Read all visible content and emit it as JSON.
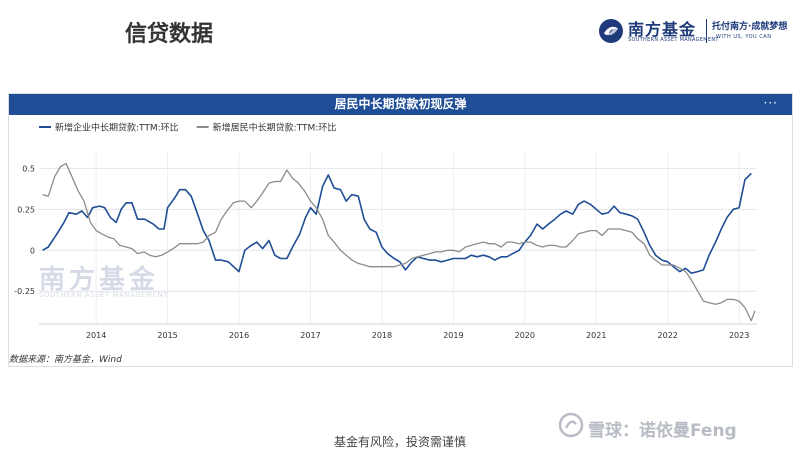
{
  "page": {
    "title": "信贷数据",
    "disclaimer": "基金有风险，投资需谨慎",
    "brand_name": "南方基金",
    "brand_en": "SOUTHERN ASSET MANAGEMENT",
    "brand_slogan": "托付南方·成就梦想",
    "brand_slogan_en": "WITH US, YOU CAN",
    "platform_watermark": "雪球：诺依曼Feng",
    "colors": {
      "header_blue": "#1f4e96",
      "brand_navy": "#1f3a7a",
      "series1": "#1f4e96",
      "series2": "#8c8c8c"
    }
  },
  "chart": {
    "more_icon": "more-horizontal-icon",
    "watermark_cn": "南方基金",
    "watermark_en": "SOUTHERN ASSET MANAGEMENT",
    "source": "数据来源：南方基金，Wind"
  },
  "chart_data": {
    "type": "line",
    "title": "居民中长期贷款初现反弹",
    "xlabel": "",
    "ylabel": "",
    "xlim": [
      2013.2,
      2023.25
    ],
    "ylim": [
      -0.45,
      0.6
    ],
    "yticks": [
      0.5,
      0.25,
      0,
      -0.25
    ],
    "ytick_labels": [
      "0.5",
      "0.25",
      "0",
      "-0.25"
    ],
    "xticks": [
      2014,
      2015,
      2016,
      2017,
      2018,
      2019,
      2020,
      2021,
      2022,
      2023
    ],
    "xtick_labels": [
      "2014",
      "2015",
      "2016",
      "2017",
      "2018",
      "2019",
      "2020",
      "2021",
      "2022",
      "2023"
    ],
    "grid": true,
    "legend_position": "top-left",
    "series": [
      {
        "name": "新增企业中长期贷款:TTM:环比",
        "color": "#1f4e96",
        "points": [
          [
            2013.25,
            0.0
          ],
          [
            2013.33,
            0.02
          ],
          [
            2013.45,
            0.1
          ],
          [
            2013.55,
            0.17
          ],
          [
            2013.62,
            0.23
          ],
          [
            2013.72,
            0.22
          ],
          [
            2013.8,
            0.24
          ],
          [
            2013.88,
            0.2
          ],
          [
            2013.95,
            0.26
          ],
          [
            2014.05,
            0.27
          ],
          [
            2014.12,
            0.26
          ],
          [
            2014.2,
            0.2
          ],
          [
            2014.28,
            0.17
          ],
          [
            2014.35,
            0.25
          ],
          [
            2014.42,
            0.29
          ],
          [
            2014.5,
            0.29
          ],
          [
            2014.58,
            0.19
          ],
          [
            2014.68,
            0.19
          ],
          [
            2014.8,
            0.16
          ],
          [
            2014.88,
            0.13
          ],
          [
            2014.95,
            0.13
          ],
          [
            2015.0,
            0.26
          ],
          [
            2015.1,
            0.32
          ],
          [
            2015.17,
            0.37
          ],
          [
            2015.25,
            0.37
          ],
          [
            2015.33,
            0.33
          ],
          [
            2015.42,
            0.22
          ],
          [
            2015.5,
            0.12
          ],
          [
            2015.58,
            0.06
          ],
          [
            2015.67,
            -0.06
          ],
          [
            2015.75,
            -0.06
          ],
          [
            2015.85,
            -0.07
          ],
          [
            2016.0,
            -0.13
          ],
          [
            2016.08,
            0.0
          ],
          [
            2016.17,
            0.03
          ],
          [
            2016.25,
            0.05
          ],
          [
            2016.33,
            0.01
          ],
          [
            2016.42,
            0.06
          ],
          [
            2016.5,
            -0.03
          ],
          [
            2016.58,
            -0.05
          ],
          [
            2016.67,
            -0.05
          ],
          [
            2016.75,
            0.02
          ],
          [
            2016.85,
            0.1
          ],
          [
            2016.93,
            0.2
          ],
          [
            2017.0,
            0.26
          ],
          [
            2017.08,
            0.22
          ],
          [
            2017.17,
            0.39
          ],
          [
            2017.25,
            0.46
          ],
          [
            2017.33,
            0.38
          ],
          [
            2017.42,
            0.37
          ],
          [
            2017.5,
            0.3
          ],
          [
            2017.58,
            0.34
          ],
          [
            2017.67,
            0.33
          ],
          [
            2017.75,
            0.19
          ],
          [
            2017.83,
            0.13
          ],
          [
            2017.92,
            0.11
          ],
          [
            2018.0,
            0.02
          ],
          [
            2018.08,
            -0.02
          ],
          [
            2018.17,
            -0.05
          ],
          [
            2018.25,
            -0.07
          ],
          [
            2018.33,
            -0.12
          ],
          [
            2018.42,
            -0.07
          ],
          [
            2018.5,
            -0.04
          ],
          [
            2018.58,
            -0.05
          ],
          [
            2018.67,
            -0.06
          ],
          [
            2018.75,
            -0.06
          ],
          [
            2018.83,
            -0.07
          ],
          [
            2018.92,
            -0.06
          ],
          [
            2019.0,
            -0.05
          ],
          [
            2019.08,
            -0.05
          ],
          [
            2019.17,
            -0.05
          ],
          [
            2019.25,
            -0.03
          ],
          [
            2019.33,
            -0.04
          ],
          [
            2019.42,
            -0.03
          ],
          [
            2019.5,
            -0.04
          ],
          [
            2019.58,
            -0.06
          ],
          [
            2019.67,
            -0.04
          ],
          [
            2019.75,
            -0.04
          ],
          [
            2019.83,
            -0.02
          ],
          [
            2019.92,
            0.0
          ],
          [
            2020.0,
            0.05
          ],
          [
            2020.08,
            0.09
          ],
          [
            2020.17,
            0.16
          ],
          [
            2020.25,
            0.13
          ],
          [
            2020.33,
            0.16
          ],
          [
            2020.42,
            0.19
          ],
          [
            2020.5,
            0.22
          ],
          [
            2020.58,
            0.24
          ],
          [
            2020.67,
            0.22
          ],
          [
            2020.75,
            0.28
          ],
          [
            2020.83,
            0.3
          ],
          [
            2020.92,
            0.28
          ],
          [
            2021.0,
            0.25
          ],
          [
            2021.08,
            0.22
          ],
          [
            2021.17,
            0.23
          ],
          [
            2021.25,
            0.27
          ],
          [
            2021.33,
            0.23
          ],
          [
            2021.42,
            0.22
          ],
          [
            2021.5,
            0.21
          ],
          [
            2021.58,
            0.19
          ],
          [
            2021.67,
            0.11
          ],
          [
            2021.75,
            0.03
          ],
          [
            2021.83,
            -0.03
          ],
          [
            2021.92,
            -0.06
          ],
          [
            2022.0,
            -0.07
          ],
          [
            2022.08,
            -0.1
          ],
          [
            2022.17,
            -0.13
          ],
          [
            2022.25,
            -0.11
          ],
          [
            2022.33,
            -0.14
          ],
          [
            2022.42,
            -0.13
          ],
          [
            2022.5,
            -0.12
          ],
          [
            2022.58,
            -0.03
          ],
          [
            2022.67,
            0.05
          ],
          [
            2022.75,
            0.13
          ],
          [
            2022.83,
            0.2
          ],
          [
            2022.92,
            0.25
          ],
          [
            2023.0,
            0.26
          ],
          [
            2023.08,
            0.43
          ],
          [
            2023.17,
            0.47
          ]
        ]
      },
      {
        "name": "新增居民中长期贷款:TTM:环比",
        "color": "#8c8c8c",
        "points": [
          [
            2013.25,
            0.34
          ],
          [
            2013.33,
            0.33
          ],
          [
            2013.42,
            0.45
          ],
          [
            2013.5,
            0.51
          ],
          [
            2013.58,
            0.53
          ],
          [
            2013.67,
            0.44
          ],
          [
            2013.75,
            0.36
          ],
          [
            2013.83,
            0.3
          ],
          [
            2013.92,
            0.17
          ],
          [
            2014.0,
            0.12
          ],
          [
            2014.08,
            0.1
          ],
          [
            2014.17,
            0.08
          ],
          [
            2014.25,
            0.07
          ],
          [
            2014.33,
            0.03
          ],
          [
            2014.42,
            0.02
          ],
          [
            2014.5,
            0.01
          ],
          [
            2014.58,
            -0.02
          ],
          [
            2014.67,
            -0.01
          ],
          [
            2014.75,
            -0.03
          ],
          [
            2014.83,
            -0.04
          ],
          [
            2014.92,
            -0.03
          ],
          [
            2015.0,
            -0.01
          ],
          [
            2015.08,
            0.01
          ],
          [
            2015.17,
            0.04
          ],
          [
            2015.25,
            0.04
          ],
          [
            2015.33,
            0.04
          ],
          [
            2015.42,
            0.04
          ],
          [
            2015.5,
            0.05
          ],
          [
            2015.58,
            0.09
          ],
          [
            2015.67,
            0.11
          ],
          [
            2015.75,
            0.19
          ],
          [
            2015.83,
            0.24
          ],
          [
            2015.92,
            0.29
          ],
          [
            2016.0,
            0.3
          ],
          [
            2016.08,
            0.3
          ],
          [
            2016.17,
            0.26
          ],
          [
            2016.25,
            0.3
          ],
          [
            2016.33,
            0.35
          ],
          [
            2016.42,
            0.41
          ],
          [
            2016.5,
            0.42
          ],
          [
            2016.58,
            0.42
          ],
          [
            2016.67,
            0.49
          ],
          [
            2016.75,
            0.44
          ],
          [
            2016.83,
            0.41
          ],
          [
            2016.92,
            0.36
          ],
          [
            2017.0,
            0.3
          ],
          [
            2017.08,
            0.26
          ],
          [
            2017.17,
            0.19
          ],
          [
            2017.25,
            0.09
          ],
          [
            2017.33,
            0.05
          ],
          [
            2017.42,
            0.0
          ],
          [
            2017.5,
            -0.03
          ],
          [
            2017.58,
            -0.06
          ],
          [
            2017.67,
            -0.08
          ],
          [
            2017.75,
            -0.09
          ],
          [
            2017.83,
            -0.1
          ],
          [
            2017.92,
            -0.1
          ],
          [
            2018.0,
            -0.1
          ],
          [
            2018.17,
            -0.1
          ],
          [
            2018.25,
            -0.09
          ],
          [
            2018.33,
            -0.08
          ],
          [
            2018.42,
            -0.05
          ],
          [
            2018.5,
            -0.04
          ],
          [
            2018.58,
            -0.03
          ],
          [
            2018.67,
            -0.02
          ],
          [
            2018.75,
            -0.01
          ],
          [
            2018.83,
            -0.01
          ],
          [
            2018.92,
            0.0
          ],
          [
            2019.0,
            0.0
          ],
          [
            2019.08,
            -0.01
          ],
          [
            2019.17,
            0.02
          ],
          [
            2019.25,
            0.03
          ],
          [
            2019.33,
            0.04
          ],
          [
            2019.42,
            0.05
          ],
          [
            2019.5,
            0.04
          ],
          [
            2019.58,
            0.04
          ],
          [
            2019.67,
            0.02
          ],
          [
            2019.75,
            0.05
          ],
          [
            2019.83,
            0.05
          ],
          [
            2019.92,
            0.04
          ],
          [
            2020.0,
            0.05
          ],
          [
            2020.08,
            0.05
          ],
          [
            2020.17,
            0.03
          ],
          [
            2020.25,
            0.02
          ],
          [
            2020.33,
            0.03
          ],
          [
            2020.42,
            0.03
          ],
          [
            2020.5,
            0.02
          ],
          [
            2020.58,
            0.02
          ],
          [
            2020.67,
            0.06
          ],
          [
            2020.75,
            0.1
          ],
          [
            2020.83,
            0.11
          ],
          [
            2020.92,
            0.12
          ],
          [
            2021.0,
            0.12
          ],
          [
            2021.08,
            0.09
          ],
          [
            2021.17,
            0.13
          ],
          [
            2021.25,
            0.13
          ],
          [
            2021.33,
            0.13
          ],
          [
            2021.42,
            0.12
          ],
          [
            2021.5,
            0.11
          ],
          [
            2021.58,
            0.07
          ],
          [
            2021.67,
            0.04
          ],
          [
            2021.75,
            -0.03
          ],
          [
            2021.83,
            -0.06
          ],
          [
            2021.92,
            -0.09
          ],
          [
            2022.0,
            -0.09
          ],
          [
            2022.08,
            -0.09
          ],
          [
            2022.17,
            -0.11
          ],
          [
            2022.25,
            -0.13
          ],
          [
            2022.33,
            -0.18
          ],
          [
            2022.42,
            -0.25
          ],
          [
            2022.5,
            -0.31
          ],
          [
            2022.58,
            -0.32
          ],
          [
            2022.67,
            -0.33
          ],
          [
            2022.75,
            -0.32
          ],
          [
            2022.83,
            -0.3
          ],
          [
            2022.92,
            -0.3
          ],
          [
            2023.0,
            -0.31
          ],
          [
            2023.08,
            -0.35
          ],
          [
            2023.17,
            -0.43
          ],
          [
            2023.22,
            -0.37
          ]
        ]
      }
    ]
  }
}
